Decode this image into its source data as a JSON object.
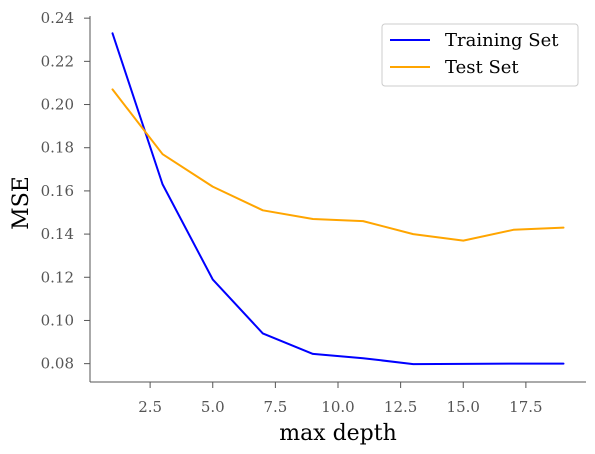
{
  "chart_data": {
    "type": "line",
    "title": "",
    "xlabel": "max depth",
    "ylabel": "MSE",
    "xlim": [
      0.1,
      19.9
    ],
    "ylim": [
      0.0715,
      0.241
    ],
    "xticks": [
      2.5,
      5.0,
      7.5,
      10.0,
      12.5,
      15.0,
      17.5
    ],
    "xtick_labels": [
      "2.5",
      "5.0",
      "7.5",
      "10.0",
      "12.5",
      "15.0",
      "17.5"
    ],
    "yticks": [
      0.08,
      0.1,
      0.12,
      0.14,
      0.16,
      0.18,
      0.2,
      0.22,
      0.24
    ],
    "ytick_labels": [
      "0.08",
      "0.10",
      "0.12",
      "0.14",
      "0.16",
      "0.18",
      "0.20",
      "0.22",
      "0.24"
    ],
    "grid": false,
    "legend_position": "top-right",
    "x": [
      1,
      3,
      5,
      7,
      9,
      11,
      13,
      15,
      17,
      19
    ],
    "series": [
      {
        "name": "Training Set",
        "color": "#0000ff",
        "values": [
          0.233,
          0.163,
          0.119,
          0.094,
          0.0845,
          0.0825,
          0.0798,
          0.0799,
          0.08,
          0.08
        ]
      },
      {
        "name": "Test Set",
        "color": "#ffa500",
        "values": [
          0.207,
          0.177,
          0.162,
          0.151,
          0.147,
          0.146,
          0.14,
          0.137,
          0.142,
          0.143
        ]
      }
    ]
  }
}
